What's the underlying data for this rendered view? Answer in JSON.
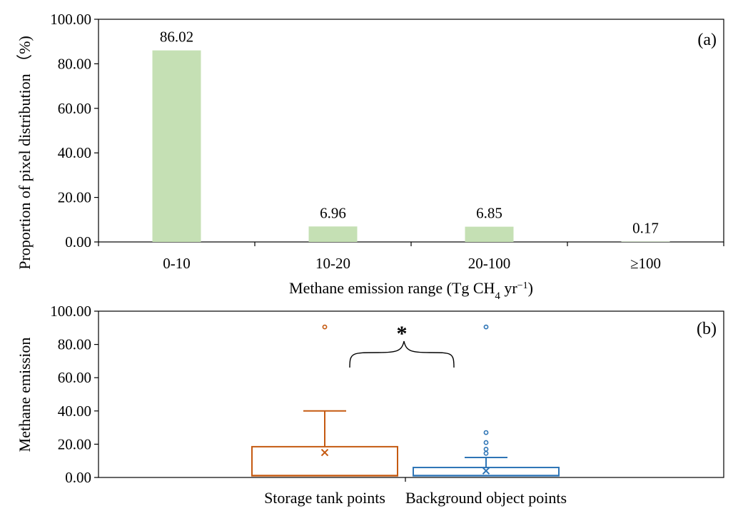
{
  "chart_data": [
    {
      "type": "bar",
      "panel_label": "(a)",
      "xlabel": "Methane emission range (Tg CH4 yr−1)",
      "xlabel_parts": {
        "pre": "Methane emission range (Tg CH",
        "sub": "4",
        "mid": " yr",
        "sup": "−1",
        "post": ")"
      },
      "ylabel": "Proportion of pixel distribution （%)",
      "categories": [
        "0-10",
        "10-20",
        "20-100",
        "≥100"
      ],
      "values": [
        86.02,
        6.96,
        6.85,
        0.17
      ],
      "value_labels": [
        "86.02",
        "6.96",
        "6.85",
        "0.17"
      ],
      "ylim": [
        0,
        100
      ],
      "yticks": [
        "0.00",
        "20.00",
        "40.00",
        "60.00",
        "80.00",
        "100.00"
      ],
      "bar_color": "#c5e0b4",
      "grid": false
    },
    {
      "type": "box",
      "panel_label": "(b)",
      "ylabel": "Methane emission",
      "categories": [
        "Storage tank points",
        "Background object points"
      ],
      "ylim": [
        0,
        100
      ],
      "yticks": [
        "0.00",
        "20.00",
        "40.00",
        "60.00",
        "80.00",
        "100.00"
      ],
      "significance": "*",
      "series": [
        {
          "category": "Storage tank points",
          "color": "#c55a11",
          "min": 1.0,
          "q1": 1.0,
          "median": 1.2,
          "q3": 18.5,
          "max": 40.0,
          "mean": 15.0,
          "outliers": [
            90.5
          ]
        },
        {
          "category": "Background object points",
          "color": "#2e75b6",
          "min": 0.5,
          "q1": 1.0,
          "median": 1.2,
          "q3": 6.0,
          "max": 12.0,
          "mean": 4.0,
          "outliers": [
            14.5,
            17.0,
            21.0,
            27.0,
            90.5
          ]
        }
      ],
      "grid": false
    }
  ]
}
